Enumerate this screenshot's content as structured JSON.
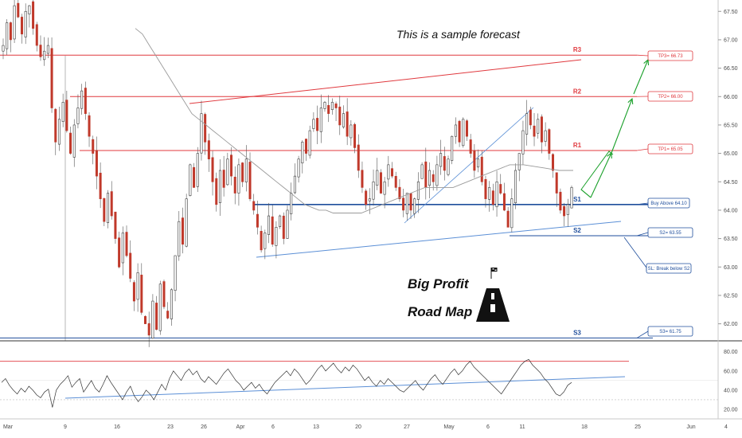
{
  "chart_data": {
    "type": "candlestick",
    "title": "This is a sample forecast",
    "brand": [
      "Big Profit",
      "Road Map"
    ],
    "price_axis": {
      "ylim": [
        61.7,
        67.7
      ],
      "ticks": [
        "67.50",
        "67.00",
        "66.50",
        "66.00",
        "65.50",
        "65.00",
        "64.50",
        "64.00",
        "63.50",
        "63.00",
        "62.50",
        "62.00"
      ]
    },
    "time_axis": {
      "ticks": [
        "Mar",
        "9",
        "16",
        "23",
        "26",
        "Apr",
        "6",
        "13",
        "20",
        "27",
        "May",
        "6",
        "11",
        "18",
        "25",
        "Jun",
        "4"
      ]
    },
    "levels": [
      {
        "label": "R3",
        "value": 66.73,
        "color": "#e0393e",
        "callout": "TP3= 66.73"
      },
      {
        "label": "R2",
        "value": 66.0,
        "color": "#e0393e",
        "callout": "TP2= 66.00"
      },
      {
        "label": "R1",
        "value": 65.05,
        "color": "#e0393e",
        "callout": "TP1= 65.05"
      },
      {
        "label": "S1",
        "value": 64.1,
        "color": "#1f4e9c",
        "callout": "Buy Above 64.10"
      },
      {
        "label": "S2",
        "value": 63.55,
        "color": "#1f4e9c",
        "callout": "S2= 63.55"
      },
      {
        "label": "S3",
        "value": 61.75,
        "color": "#1f4e9c",
        "callout": "S3= 61.75"
      }
    ],
    "sl_callout": "SL: Break below S2",
    "price_series": [
      66.9,
      67.3,
      67.0,
      67.6,
      67.4,
      67.1,
      67.5,
      67.6,
      67.2,
      66.9,
      66.7,
      66.8,
      66.9,
      65.8,
      65.2,
      65.6,
      65.9,
      65.4,
      65.0,
      65.5,
      65.8,
      66.1,
      65.7,
      65.3,
      65.0,
      64.6,
      64.2,
      63.8,
      64.3,
      63.9,
      63.5,
      63.0,
      63.6,
      63.2,
      62.8,
      62.4,
      62.9,
      62.2,
      62.0,
      61.8,
      62.4,
      61.9,
      62.7,
      62.3,
      62.1,
      62.6,
      63.2,
      63.8,
      63.4,
      64.2,
      64.8,
      64.4,
      65.0,
      65.7,
      65.2,
      64.9,
      64.5,
      64.1,
      64.7,
      64.4,
      64.9,
      64.6,
      64.3,
      64.8,
      64.5,
      64.9,
      64.2,
      64.0,
      63.7,
      63.3,
      63.6,
      63.9,
      63.4,
      63.7,
      63.9,
      63.5,
      64.0,
      64.3,
      64.6,
      64.9,
      65.2,
      65.0,
      65.4,
      65.6,
      65.4,
      65.8,
      65.9,
      65.7,
      65.9,
      65.8,
      65.5,
      65.7,
      65.3,
      65.5,
      65.1,
      64.7,
      64.4,
      64.1,
      64.2,
      64.5,
      64.7,
      64.3,
      64.5,
      64.8,
      64.6,
      64.4,
      64.2,
      64.0,
      64.3,
      64.0,
      64.2,
      64.5,
      64.8,
      64.4,
      64.7,
      64.5,
      64.8,
      65.0,
      64.7,
      64.9,
      65.3,
      65.5,
      65.2,
      65.6,
      65.3,
      65.0,
      64.7,
      64.9,
      64.5,
      64.2,
      64.4,
      64.1,
      64.5,
      64.3,
      64.0,
      63.7,
      64.2,
      64.7,
      65.0,
      65.4,
      65.7,
      65.5,
      65.3,
      65.6,
      65.2,
      65.4,
      65.0,
      64.7,
      64.3,
      64.0,
      63.9,
      64.1,
      64.4
    ],
    "ma_series": [
      null,
      null,
      null,
      null,
      null,
      null,
      null,
      null,
      null,
      null,
      null,
      null,
      null,
      67.2,
      67.1,
      66.9,
      66.7,
      66.5,
      66.3,
      66.1,
      65.9,
      65.7,
      65.6,
      65.5,
      65.4,
      65.3,
      65.2,
      65.1,
      65.0,
      64.9,
      64.8,
      64.7,
      64.6,
      64.5,
      64.4,
      64.3,
      64.2,
      64.1,
      64.05,
      64.0,
      64.0,
      63.95,
      63.95,
      63.95,
      63.95,
      63.95,
      64.0,
      64.05,
      64.1,
      64.15,
      64.2,
      64.25,
      64.3,
      64.35,
      64.4,
      64.4,
      64.4,
      64.4,
      64.4,
      64.45,
      64.5,
      64.55,
      64.6,
      64.65,
      64.7,
      64.75,
      64.8,
      64.8,
      64.8,
      64.78,
      64.76,
      64.74,
      64.72,
      64.7,
      64.7,
      64.7
    ],
    "indicator": {
      "ylim": [
        15,
        88
      ],
      "ticks": [
        "80.00",
        "60.00",
        "40.00",
        "20.00"
      ],
      "upper_band": 70,
      "lower_band": 30,
      "mid": 50,
      "series": [
        48,
        52,
        45,
        40,
        36,
        42,
        38,
        44,
        40,
        35,
        32,
        38,
        41,
        22,
        40,
        46,
        50,
        55,
        43,
        48,
        52,
        38,
        44,
        50,
        42,
        38,
        46,
        55,
        48,
        42,
        36,
        30,
        38,
        44,
        34,
        28,
        33,
        40,
        36,
        30,
        38,
        46,
        40,
        52,
        60,
        55,
        50,
        58,
        62,
        56,
        60,
        52,
        48,
        54,
        50,
        46,
        52,
        58,
        62,
        56,
        50,
        46,
        40,
        44,
        48,
        42,
        46,
        40,
        36,
        42,
        48,
        52,
        56,
        60,
        55,
        62,
        58,
        52,
        46,
        50,
        56,
        62,
        66,
        60,
        64,
        68,
        62,
        58,
        64,
        60,
        66,
        62,
        56,
        50,
        54,
        48,
        44,
        50,
        46,
        52,
        48,
        44,
        40,
        38,
        42,
        46,
        50,
        44,
        40,
        46,
        52,
        56,
        50,
        46,
        52,
        58,
        62,
        56,
        60,
        66,
        70,
        64,
        60,
        56,
        52,
        48,
        44,
        40,
        36,
        42,
        48,
        54,
        60,
        66,
        70,
        72,
        66,
        62,
        58,
        52,
        48,
        42,
        36,
        34,
        38,
        45,
        48
      ]
    }
  }
}
